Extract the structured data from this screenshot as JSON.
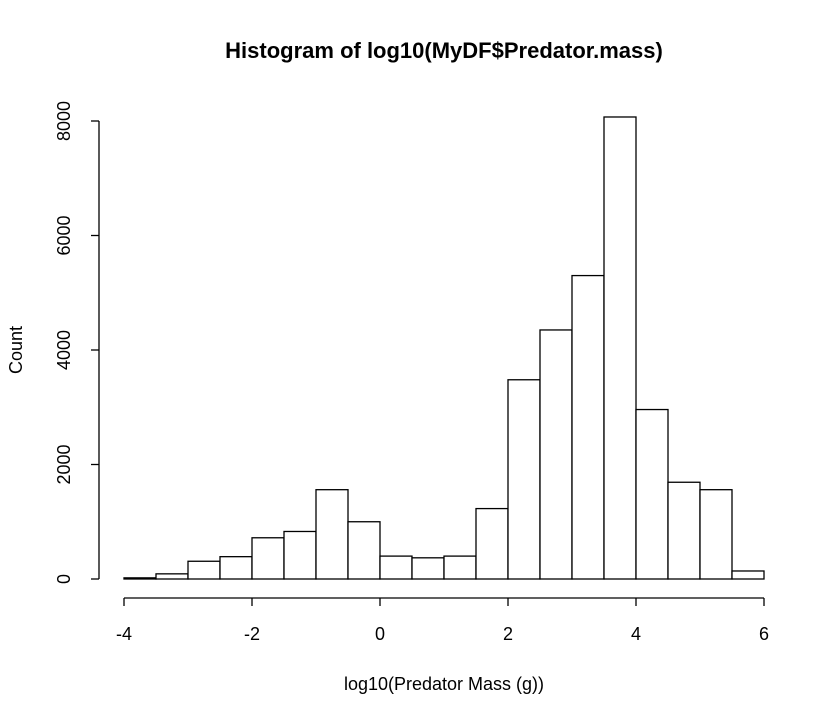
{
  "chart_data": {
    "type": "bar",
    "subtype": "histogram",
    "title": "Histogram of log10(MyDF$Predator.mass)",
    "xlabel": "log10(Predator Mass (g))",
    "ylabel": "Count",
    "xlim": [
      -4,
      6
    ],
    "ylim": [
      0,
      8000
    ],
    "bin_width": 0.5,
    "bins": [
      {
        "x0": -4.0,
        "x1": -3.5,
        "count": 20
      },
      {
        "x0": -3.5,
        "x1": -3.0,
        "count": 90
      },
      {
        "x0": -3.0,
        "x1": -2.5,
        "count": 310
      },
      {
        "x0": -2.5,
        "x1": -2.0,
        "count": 390
      },
      {
        "x0": -2.0,
        "x1": -1.5,
        "count": 720
      },
      {
        "x0": -1.5,
        "x1": -1.0,
        "count": 830
      },
      {
        "x0": -1.0,
        "x1": -0.5,
        "count": 1560
      },
      {
        "x0": -0.5,
        "x1": 0.0,
        "count": 1000
      },
      {
        "x0": 0.0,
        "x1": 0.5,
        "count": 400
      },
      {
        "x0": 0.5,
        "x1": 1.0,
        "count": 370
      },
      {
        "x0": 1.0,
        "x1": 1.5,
        "count": 400
      },
      {
        "x0": 1.5,
        "x1": 2.0,
        "count": 1230
      },
      {
        "x0": 2.0,
        "x1": 2.5,
        "count": 3480
      },
      {
        "x0": 2.5,
        "x1": 3.0,
        "count": 4350
      },
      {
        "x0": 3.0,
        "x1": 3.5,
        "count": 5300
      },
      {
        "x0": 3.5,
        "x1": 4.0,
        "count": 8070
      },
      {
        "x0": 4.0,
        "x1": 4.5,
        "count": 2960
      },
      {
        "x0": 4.5,
        "x1": 5.0,
        "count": 1690
      },
      {
        "x0": 5.0,
        "x1": 5.5,
        "count": 1560
      },
      {
        "x0": 5.5,
        "x1": 6.0,
        "count": 140
      }
    ],
    "x_ticks": [
      -4,
      -2,
      0,
      2,
      4,
      6
    ],
    "x_tick_labels": [
      "-4",
      "-2",
      "0",
      "2",
      "4",
      "6"
    ],
    "y_ticks": [
      0,
      2000,
      4000,
      6000,
      8000
    ],
    "y_tick_labels": [
      "0",
      "2000",
      "4000",
      "6000",
      "8000"
    ],
    "grid": false,
    "legend": "none",
    "colors": {
      "bar_fill": "#ffffff",
      "bar_stroke": "#000000"
    }
  }
}
